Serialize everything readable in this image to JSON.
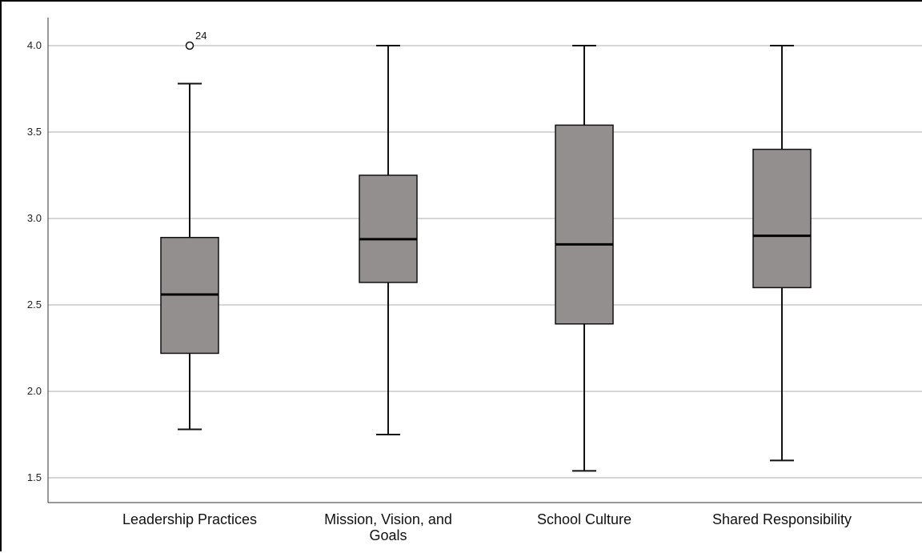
{
  "chart_data": {
    "type": "box",
    "title": "",
    "xlabel": "",
    "ylabel": "",
    "ylim": [
      1.35,
      4.14
    ],
    "yticks": [
      "1.5",
      "2.0",
      "2.5",
      "3.0",
      "3.5",
      "4.0"
    ],
    "grid": true,
    "box_color": "#948f8f",
    "categories": [
      {
        "label_lines": [
          "Leadership Practices"
        ],
        "min": 1.78,
        "q1": 2.22,
        "median": 2.56,
        "q3": 2.89,
        "max": 3.78,
        "outliers": [
          {
            "value": 4.0,
            "label": "24"
          }
        ]
      },
      {
        "label_lines": [
          "Mission, Vision, and",
          "Goals"
        ],
        "min": 1.75,
        "q1": 2.63,
        "median": 2.88,
        "q3": 3.25,
        "max": 4.0,
        "outliers": []
      },
      {
        "label_lines": [
          "School Culture"
        ],
        "min": 1.54,
        "q1": 2.39,
        "median": 2.85,
        "q3": 3.54,
        "max": 4.0,
        "outliers": []
      },
      {
        "label_lines": [
          "Shared Responsibility"
        ],
        "min": 1.6,
        "q1": 2.6,
        "median": 2.9,
        "q3": 3.4,
        "max": 4.0,
        "outliers": []
      }
    ]
  }
}
